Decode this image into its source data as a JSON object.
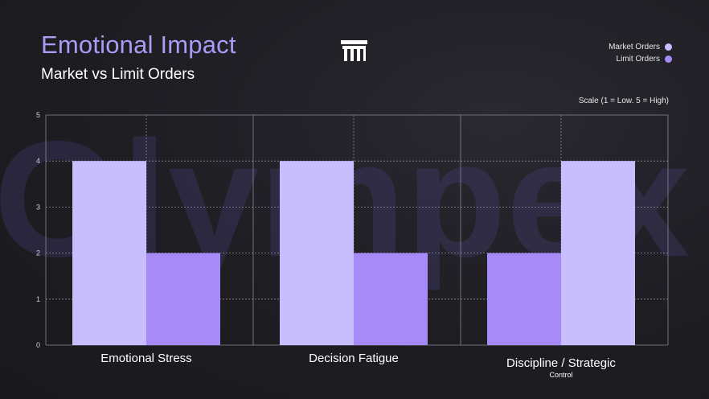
{
  "header": {
    "title": "Emotional Impact",
    "subtitle": "Market vs Limit Orders",
    "logo_icon": "pillar-logo-icon",
    "watermark": "Olympex"
  },
  "legend": {
    "items": [
      {
        "label": "Market Orders",
        "color": "#c8bdfd"
      },
      {
        "label": "Limit Orders",
        "color": "#a58af8"
      }
    ]
  },
  "scale_note": "Scale (1 = Low. 5 = High)",
  "chart_data": {
    "type": "bar",
    "categories": [
      "Emotional Stress",
      "Decision Fatigue",
      "Discipline / Strategic Control"
    ],
    "category_lines": [
      [
        "Emotional Stress"
      ],
      [
        "Decision Fatigue"
      ],
      [
        "Discipline / Strategic",
        "Control"
      ]
    ],
    "series": [
      {
        "name": "Market Orders",
        "values": [
          4,
          4,
          2
        ],
        "color": "#c8bdfd"
      },
      {
        "name": "Limit Orders",
        "values": [
          2,
          2,
          4
        ],
        "color": "#a58af8"
      }
    ],
    "bar_colors": [
      [
        "#c8bdfd",
        "#a58af8"
      ],
      [
        "#c8bdfd",
        "#a58af8"
      ],
      [
        "#a58af8",
        "#c8bdfd"
      ]
    ],
    "ylim": [
      0,
      5
    ],
    "yticks": [
      0,
      1,
      2,
      3,
      4,
      5
    ],
    "grid": true,
    "legend_position": "top-right"
  }
}
